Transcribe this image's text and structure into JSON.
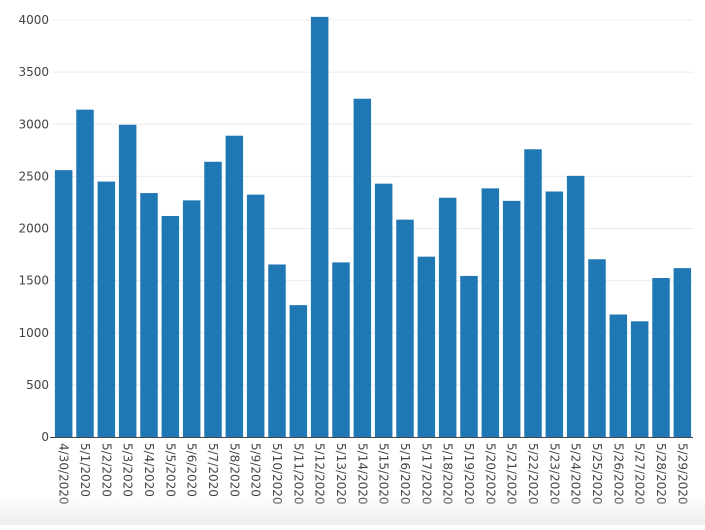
{
  "chart_data": {
    "type": "bar",
    "categories": [
      "4/30/2020",
      "5/1/2020",
      "5/2/2020",
      "5/3/2020",
      "5/4/2020",
      "5/5/2020",
      "5/6/2020",
      "5/7/2020",
      "5/8/2020",
      "5/9/2020",
      "5/10/2020",
      "5/11/2020",
      "5/12/2020",
      "5/13/2020",
      "5/14/2020",
      "5/15/2020",
      "5/16/2020",
      "5/17/2020",
      "5/18/2020",
      "5/19/2020",
      "5/20/2020",
      "5/21/2020",
      "5/22/2020",
      "5/23/2020",
      "5/24/2020",
      "5/25/2020",
      "5/26/2020",
      "5/27/2020",
      "5/28/2020",
      "5/29/2020"
    ],
    "values": [
      2560,
      3140,
      2450,
      2995,
      2340,
      2120,
      2270,
      2640,
      2890,
      2325,
      1655,
      1265,
      4030,
      1675,
      3245,
      2430,
      2085,
      1730,
      2295,
      1545,
      2385,
      2265,
      2760,
      2355,
      2505,
      1705,
      1175,
      1110,
      1525,
      1620
    ],
    "title": "",
    "xlabel": "",
    "ylabel": "",
    "ylim": [
      0,
      4000
    ],
    "yticks": [
      0,
      500,
      1000,
      1500,
      2000,
      2500,
      3000,
      3500,
      4000
    ],
    "ytick_labels": [
      "0",
      "500",
      "1000",
      "1500",
      "2000",
      "2500",
      "3000",
      "3500",
      "4000"
    ],
    "grid": true,
    "legend": "none",
    "bar_color": "#1f77b4"
  }
}
